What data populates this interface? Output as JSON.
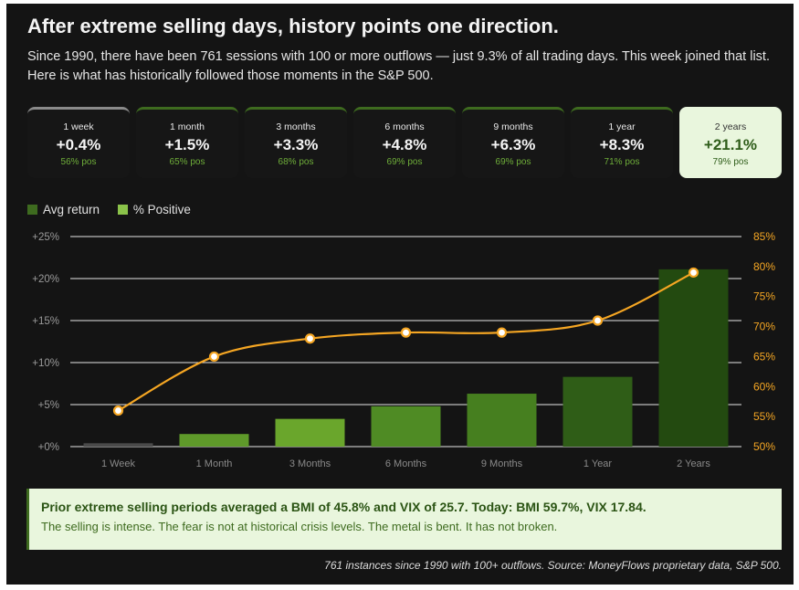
{
  "header": {
    "title": "After extreme selling days, history points one direction.",
    "subtitle": "Since 1990, there have been 761 sessions with 100 or more outflows — just 9.3% of all trading days. This week joined that list. Here is what has historically followed those moments in the S&P 500."
  },
  "cards": [
    {
      "label": "1 week",
      "value": "+0.4%",
      "pos": "56% pos"
    },
    {
      "label": "1 month",
      "value": "+1.5%",
      "pos": "65% pos"
    },
    {
      "label": "3 months",
      "value": "+3.3%",
      "pos": "68% pos"
    },
    {
      "label": "6 months",
      "value": "+4.8%",
      "pos": "69% pos"
    },
    {
      "label": "9 months",
      "value": "+6.3%",
      "pos": "69% pos"
    },
    {
      "label": "1 year",
      "value": "+8.3%",
      "pos": "71% pos"
    },
    {
      "label": "2 years",
      "value": "+21.1%",
      "pos": "79% pos"
    }
  ],
  "colors": {
    "background": "#141414",
    "bar_dark": "#3e6b1f",
    "bar_light": "#7cb342",
    "line": "#f5a623",
    "note_bg": "#e9f6dd"
  },
  "chart_data": {
    "type": "bar",
    "categories": [
      "1 Week",
      "1 Month",
      "3 Months",
      "6 Months",
      "9 Months",
      "1 Year",
      "2 Years"
    ],
    "series": [
      {
        "name": "Avg return",
        "type": "bar",
        "axis": "left",
        "values": [
          0.4,
          1.5,
          3.3,
          4.8,
          6.3,
          8.3,
          21.1
        ]
      },
      {
        "name": "% Positive",
        "type": "line",
        "axis": "right",
        "values": [
          56,
          65,
          68,
          69,
          69,
          71,
          79
        ]
      }
    ],
    "bar_colors": [
      "#4a4a4a",
      "#5f9a2a",
      "#6aa62c",
      "#4f8b24",
      "#467f1f",
      "#2f5d17",
      "#234a10"
    ],
    "yticks_left": [
      "+0%",
      "+5%",
      "+10%",
      "+15%",
      "+20%",
      "+25%"
    ],
    "ylim_left": [
      0,
      25
    ],
    "yticks_right": [
      "50%",
      "55%",
      "60%",
      "65%",
      "70%",
      "75%",
      "80%",
      "85%"
    ],
    "ylim_right": [
      50,
      85
    ],
    "legend": [
      {
        "label": "Avg return",
        "color": "#3e6b1f"
      },
      {
        "label": "% Positive",
        "color": "#8bc34a"
      }
    ],
    "legend_position": "top-left",
    "grid": true
  },
  "note": {
    "headline": "Prior extreme selling periods averaged a BMI of 45.8% and VIX of 25.7. Today: BMI 59.7%, VIX 17.84.",
    "body": "The selling is intense. The fear is not at historical crisis levels. The metal is bent. It has not broken."
  },
  "footer": "761 instances since 1990 with 100+ outflows. Source: MoneyFlows proprietary data, S&P 500."
}
